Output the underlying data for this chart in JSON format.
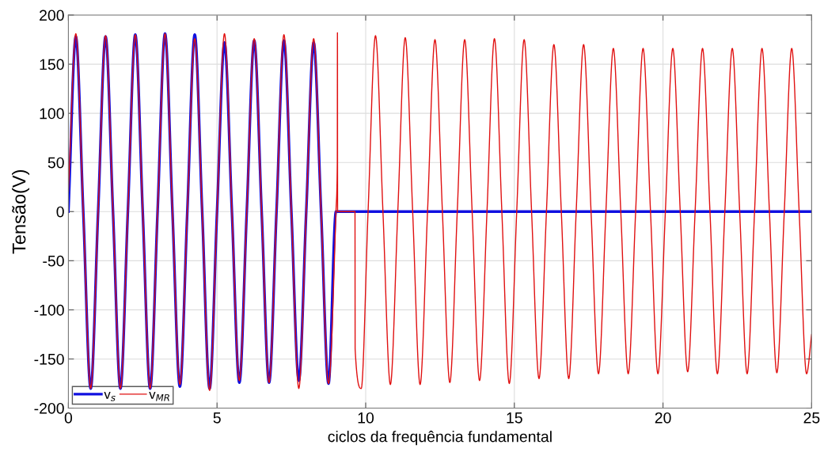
{
  "chart_data": {
    "type": "line",
    "xlabel": "ciclos da frequência fundamental",
    "ylabel": "Tensão(V)",
    "xlim": [
      0,
      25
    ],
    "ylim": [
      -200,
      200
    ],
    "xticks": [
      0,
      5,
      10,
      15,
      20,
      25
    ],
    "yticks": [
      -200,
      -150,
      -100,
      -50,
      0,
      50,
      100,
      150,
      200
    ],
    "grid": true,
    "legend": "bottom left",
    "line_style": "solid",
    "marker": "none",
    "series": [
      {
        "name": "v$_{s}$",
        "color": "#1010e0",
        "x": [
          0,
          0.25,
          0.5,
          0.75,
          1,
          1.25,
          1.5,
          1.75,
          2,
          2.25,
          2.5,
          2.75,
          3,
          3.25,
          3.5,
          3.75,
          4,
          4.25,
          4.5,
          4.75,
          5,
          5.25,
          5.5,
          5.75,
          6,
          6.25,
          6.5,
          6.75,
          7,
          7.25,
          7.5,
          7.75,
          8,
          8.25,
          8.5,
          8.75,
          9,
          25
        ],
        "values": [
          0,
          178,
          0,
          -180,
          0,
          178,
          0,
          -180,
          0,
          180,
          0,
          -180,
          0,
          181,
          0,
          -178,
          0,
          180,
          0,
          -180,
          0,
          172,
          0,
          -174,
          0,
          174,
          0,
          -174,
          0,
          174,
          0,
          -172,
          0,
          172,
          0,
          -175,
          0,
          0
        ]
      },
      {
        "name": "v$_{MR}$",
        "color": "#e01010",
        "x": [
          0,
          0.25,
          0.5,
          0.75,
          1,
          1.25,
          1.5,
          1.75,
          2,
          2.25,
          2.5,
          2.75,
          3,
          3.25,
          3.5,
          3.75,
          4,
          4.25,
          4.5,
          4.75,
          5,
          5.25,
          5.5,
          5.75,
          6,
          6.25,
          6.5,
          6.75,
          7,
          7.25,
          7.5,
          7.75,
          8,
          8.25,
          8.5,
          8.75,
          9,
          9.045,
          9.05,
          9.055,
          9.64,
          9.645,
          9.85,
          10.08,
          10.33,
          10.58,
          10.83,
          11.08,
          11.33,
          11.58,
          11.83,
          12.08,
          12.33,
          12.58,
          12.83,
          13.08,
          13.33,
          13.58,
          13.83,
          14.08,
          14.33,
          14.58,
          14.83,
          15.08,
          15.33,
          15.58,
          15.83,
          16.08,
          16.33,
          16.58,
          16.83,
          17.08,
          17.33,
          17.58,
          17.83,
          18.08,
          18.33,
          18.58,
          18.83,
          19.08,
          19.33,
          19.58,
          19.83,
          20.08,
          20.33,
          20.58,
          20.83,
          21.08,
          21.33,
          21.58,
          21.83,
          22.08,
          22.33,
          22.58,
          22.83,
          23.08,
          23.33,
          23.58,
          23.83,
          24.08,
          24.33,
          24.58,
          24.83,
          25
        ],
        "values": [
          20,
          181,
          0,
          -180,
          0,
          179,
          0,
          -180,
          0,
          180,
          0,
          -180,
          0,
          181,
          0,
          -176,
          0,
          176,
          0,
          -182,
          0,
          181,
          0,
          -172,
          0,
          176,
          0,
          -174,
          0,
          180,
          0,
          -180,
          0,
          176,
          0,
          -175,
          0,
          50,
          182,
          0,
          0,
          -140,
          -180,
          0,
          179,
          0,
          -176,
          0,
          177,
          0,
          -176,
          0,
          175,
          0,
          -174,
          0,
          175,
          0,
          -172,
          0,
          176,
          0,
          -175,
          0,
          175,
          0,
          -170,
          0,
          170,
          0,
          -170,
          0,
          170,
          0,
          -165,
          0,
          166,
          0,
          -165,
          0,
          166,
          0,
          -165,
          0,
          166,
          0,
          -163,
          0,
          166,
          0,
          -165,
          0,
          166,
          0,
          -165,
          0,
          166,
          0,
          -164,
          0,
          166,
          0,
          -165,
          -125
        ]
      }
    ]
  }
}
